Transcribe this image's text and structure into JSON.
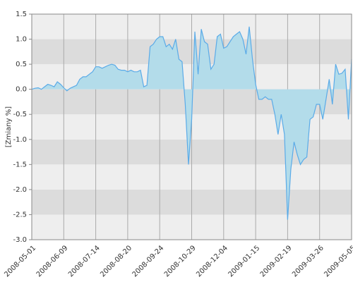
{
  "chart_data": {
    "type": "area",
    "y_label": "[Zmiany %]",
    "categories": [
      "2008-05-01",
      null,
      null,
      null,
      null,
      null,
      null,
      null,
      null,
      null,
      "2008-06-09",
      null,
      null,
      null,
      null,
      null,
      null,
      null,
      null,
      null,
      "2008-07-14",
      null,
      null,
      null,
      null,
      null,
      null,
      null,
      null,
      null,
      "2008-08-20",
      null,
      null,
      null,
      null,
      null,
      null,
      null,
      null,
      null,
      "2008-09-24",
      null,
      null,
      null,
      null,
      null,
      null,
      null,
      null,
      null,
      "2008-10-29",
      null,
      null,
      null,
      null,
      null,
      null,
      null,
      null,
      null,
      "2008-12-04",
      null,
      null,
      null,
      null,
      null,
      null,
      null,
      null,
      null,
      "2009-01-15",
      null,
      null,
      null,
      null,
      null,
      null,
      null,
      null,
      null,
      "2009-02-19",
      null,
      null,
      null,
      null,
      null,
      null,
      null,
      null,
      null,
      "2009-03-26",
      null,
      null,
      null,
      null,
      null,
      null,
      null,
      null,
      null,
      "2009-05-05"
    ],
    "series": [
      {
        "color": "#5aabe8",
        "fill": "#b3dcea",
        "values": [
          0.0,
          0.02,
          0.03,
          0.0,
          0.05,
          0.1,
          0.08,
          0.05,
          0.15,
          0.1,
          0.03,
          -0.03,
          0.02,
          0.05,
          0.08,
          0.2,
          0.25,
          0.25,
          0.3,
          0.35,
          0.45,
          0.45,
          0.42,
          0.45,
          0.48,
          0.5,
          0.48,
          0.4,
          0.38,
          0.38,
          0.35,
          0.38,
          0.35,
          0.35,
          0.38,
          0.05,
          0.08,
          0.85,
          0.9,
          1.0,
          1.05,
          1.05,
          0.85,
          0.9,
          0.8,
          1.0,
          0.6,
          0.55,
          -0.3,
          -1.5,
          -0.6,
          1.15,
          0.3,
          1.2,
          0.95,
          0.9,
          0.4,
          0.5,
          1.05,
          1.1,
          0.82,
          0.85,
          0.95,
          1.05,
          1.1,
          1.15,
          1.0,
          0.7,
          1.25,
          0.6,
          0.1,
          -0.2,
          -0.2,
          -0.15,
          -0.2,
          -0.2,
          -0.5,
          -0.9,
          -0.5,
          -0.9,
          -2.6,
          -1.6,
          -1.05,
          -1.3,
          -1.5,
          -1.4,
          -1.35,
          -0.6,
          -0.55,
          -0.3,
          -0.3,
          -0.6,
          -0.2,
          0.2,
          -0.3,
          0.5,
          0.3,
          0.32,
          0.4,
          -0.6,
          0.6
        ]
      }
    ],
    "ylim": [
      -3,
      1.5
    ],
    "yticks": [
      {
        "value": -3,
        "label": "-3.0"
      },
      -2.5,
      {
        "value": -2,
        "label": "-2.0"
      },
      -1.5,
      {
        "value": -1,
        "label": "-1.0"
      },
      -0.5,
      {
        "value": 0,
        "label": "0.0"
      },
      0.5,
      {
        "value": 1,
        "label": "1.0"
      },
      1.5
    ],
    "grid": true
  }
}
